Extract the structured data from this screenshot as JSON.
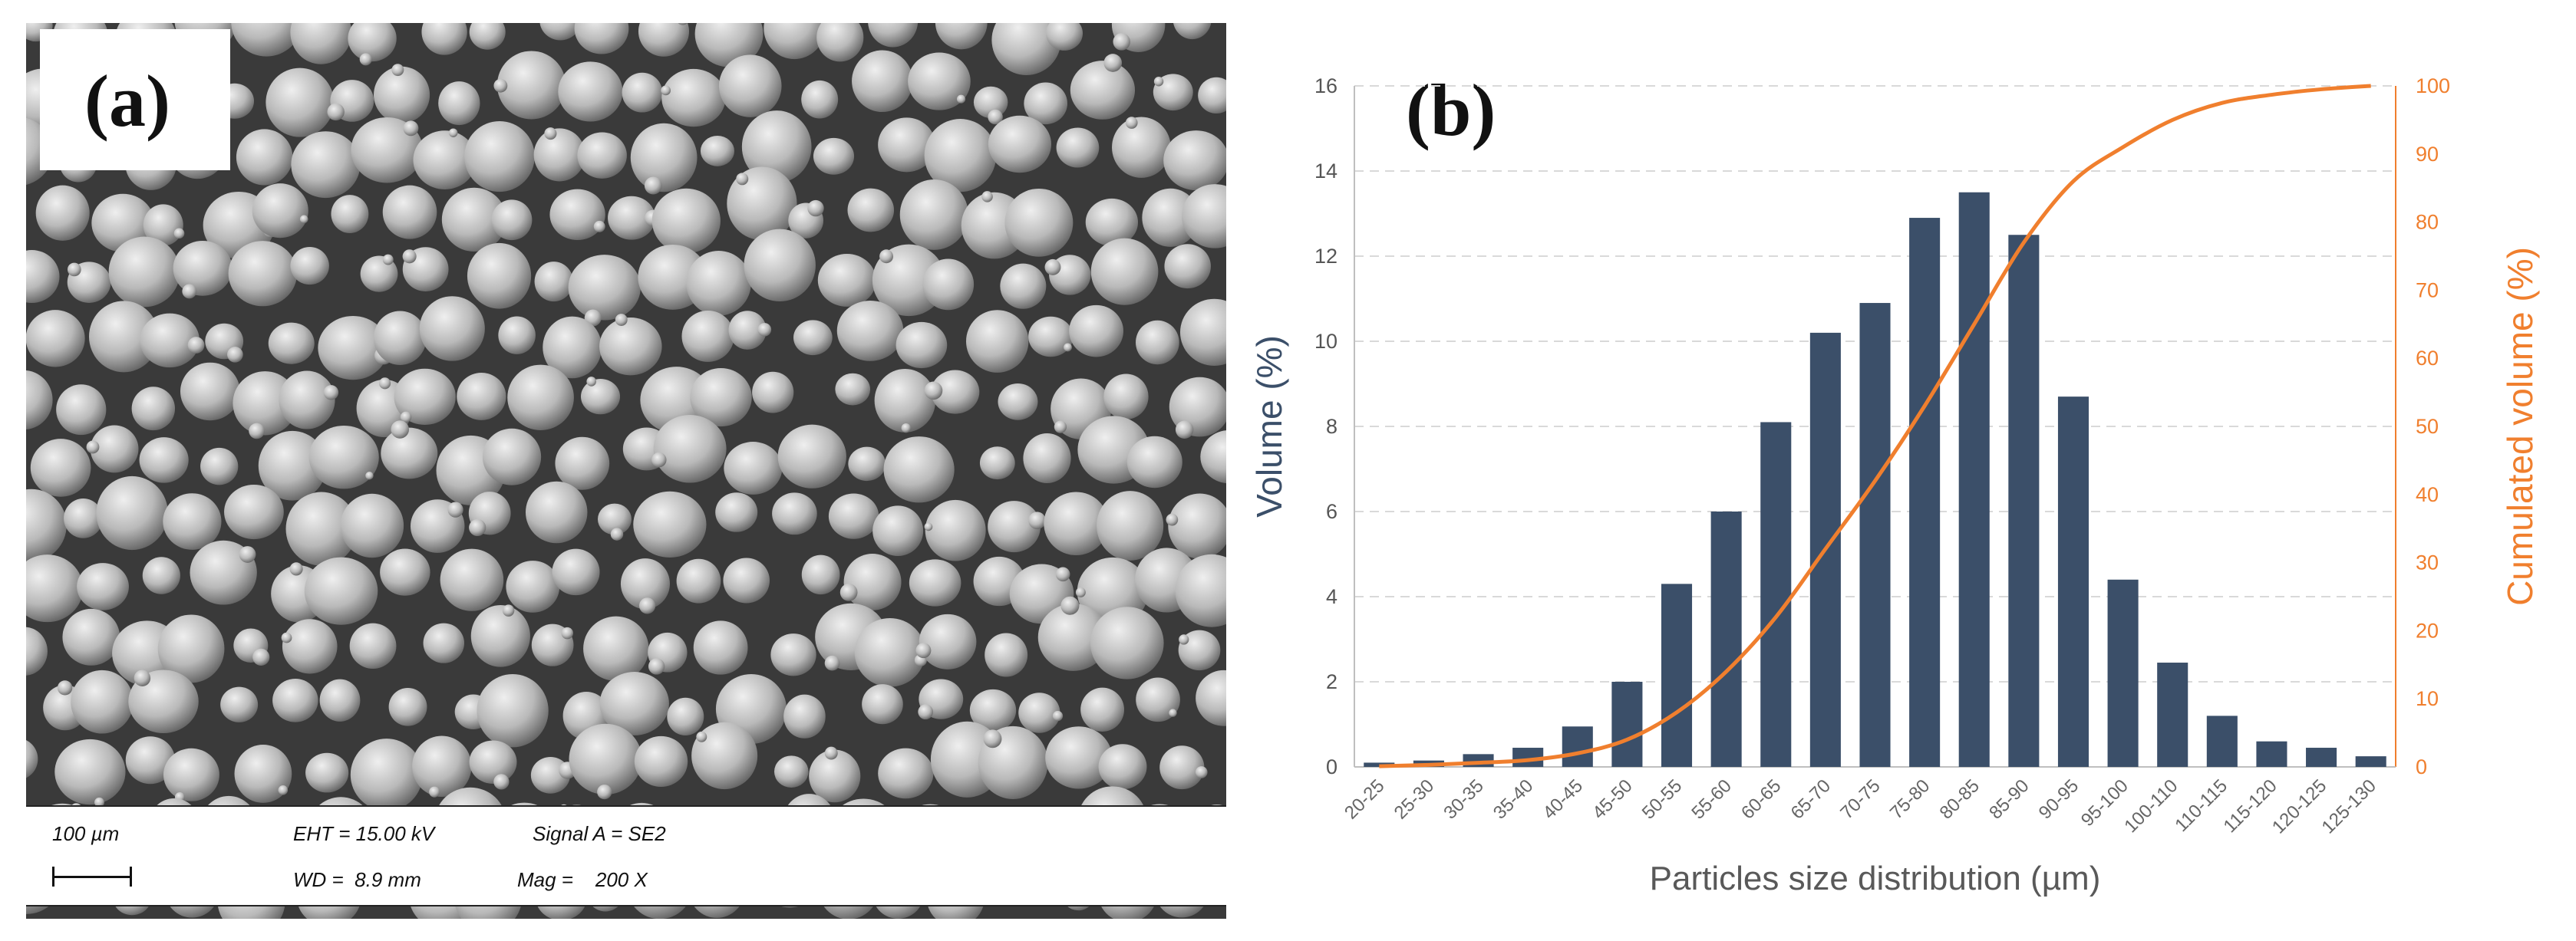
{
  "panel_a": {
    "label": "(a)",
    "info": {
      "scale": "100 µm",
      "eht": "EHT = 15.00 kV",
      "signal": "Signal A = SE2",
      "wd": "WD =  8.9 mm",
      "mag": "Mag =    200 X"
    }
  },
  "panel_b": {
    "label": "(b)"
  },
  "colors": {
    "bar": "#3b4f69",
    "line": "#f07f2e",
    "grid": "#d9d9d9",
    "left_axis_text": "#3b4f69",
    "right_axis_text": "#f07f2e"
  },
  "chart_data": {
    "type": "bar",
    "title": "",
    "xlabel": "Particles size distribution (µm)",
    "ylabel": "Volume (%)",
    "y2label": "Cumulated volume (%)",
    "ylim": [
      0,
      16
    ],
    "y2lim": [
      0,
      100
    ],
    "yticks": [
      "0",
      "2",
      "4",
      "6",
      "8",
      "10",
      "12",
      "14",
      "16"
    ],
    "y2ticks": [
      "0",
      "10",
      "20",
      "30",
      "40",
      "50",
      "60",
      "70",
      "80",
      "90",
      "100"
    ],
    "grid": true,
    "categories": [
      "20-25",
      "25-30",
      "30-35",
      "35-40",
      "40-45",
      "45-50",
      "50-55",
      "55-60",
      "60-65",
      "65-70",
      "70-75",
      "75-80",
      "80-85",
      "85-90",
      "90-95",
      "95-100",
      "100-110",
      "110-115",
      "115-120",
      "120-125",
      "125-130"
    ],
    "series": [
      {
        "name": "Volume (%)",
        "type": "bar",
        "axis": "left",
        "values": [
          0.1,
          0.15,
          0.3,
          0.45,
          0.95,
          2.0,
          4.3,
          6.0,
          8.1,
          10.2,
          10.9,
          12.9,
          13.5,
          12.5,
          8.7,
          4.4,
          2.45,
          1.2,
          0.6,
          0.45,
          0.25
        ]
      },
      {
        "name": "Cumulated volume (%)",
        "type": "line",
        "axis": "right",
        "values": [
          0.1,
          0.3,
          0.6,
          1.0,
          2.0,
          4.0,
          8.0,
          14.0,
          22.0,
          32.0,
          42.0,
          53.0,
          65.0,
          77.0,
          86.0,
          91.0,
          95.0,
          97.5,
          98.7,
          99.5,
          100.0
        ]
      }
    ]
  }
}
